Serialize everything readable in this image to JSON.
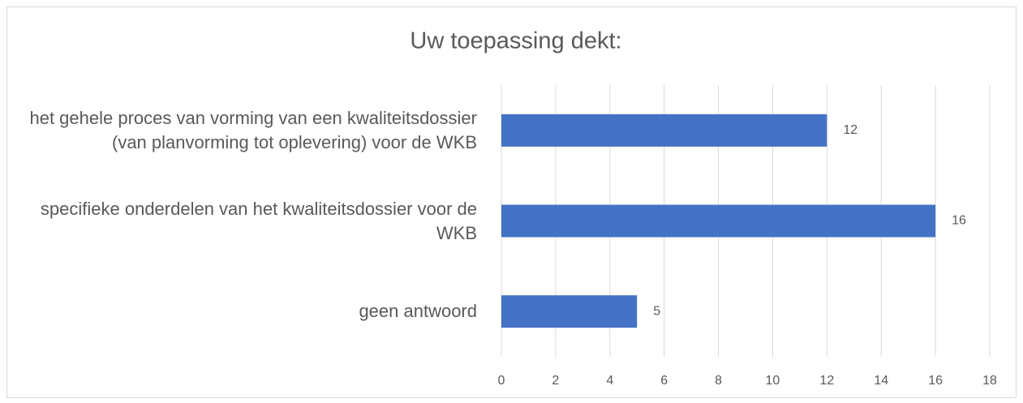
{
  "chart_data": {
    "type": "bar",
    "orientation": "horizontal",
    "title": "Uw toepassing dekt:",
    "categories": [
      "het gehele proces van vorming van een kwaliteitsdossier (van planvorming tot oplevering) voor de WKB",
      "specifieke onderdelen van het kwaliteitsdossier voor de WKB",
      "geen antwoord"
    ],
    "values": [
      12,
      16,
      5
    ],
    "color": "#4472c4",
    "xlim": [
      0,
      18
    ],
    "xticks": [
      0,
      2,
      4,
      6,
      8,
      10,
      12,
      14,
      16,
      18
    ],
    "grid": true
  }
}
